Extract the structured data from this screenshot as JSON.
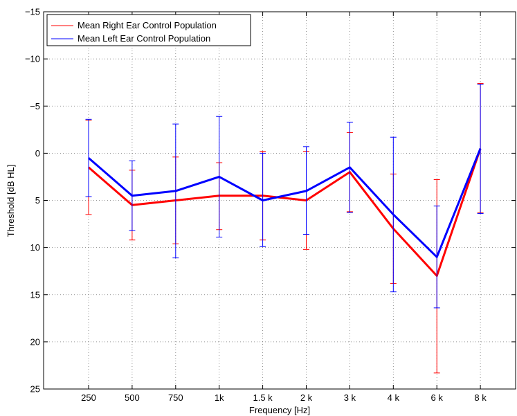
{
  "chart_data": {
    "type": "line",
    "title": "",
    "xlabel": "Frequency [Hz]",
    "ylabel": "Threshold [dB HL]",
    "categories": [
      "250",
      "500",
      "750",
      "1k",
      "1.5 k",
      "2 k",
      "3 k",
      "4 k",
      "6 k",
      "8 k"
    ],
    "y_ticks": [
      "−15",
      "−10",
      "−5",
      "0",
      "5",
      "10",
      "15",
      "20",
      "25"
    ],
    "ylim": [
      -15,
      25
    ],
    "y_reversed": true,
    "grid": true,
    "legend_position": "top-left",
    "series": [
      {
        "name": "Mean Right Ear Control Population",
        "color": "#ff0000",
        "values": [
          1.5,
          5.5,
          5.0,
          4.5,
          4.5,
          5.0,
          2.0,
          8.0,
          13.0,
          -0.5
        ],
        "err_low": [
          6.5,
          9.2,
          9.6,
          8.1,
          9.2,
          10.2,
          6.2,
          13.8,
          23.3,
          6.3
        ],
        "err_high": [
          -3.5,
          1.8,
          0.4,
          1.0,
          -0.2,
          -0.2,
          -2.2,
          2.2,
          2.8,
          -7.4
        ]
      },
      {
        "name": "Mean Left Ear Control Population",
        "color": "#0000ff",
        "values": [
          0.5,
          4.5,
          4.0,
          2.5,
          5.0,
          4.0,
          1.5,
          6.5,
          11.0,
          -0.5
        ],
        "err_low": [
          4.6,
          8.2,
          11.1,
          8.9,
          9.9,
          8.6,
          6.3,
          14.7,
          16.4,
          6.4
        ],
        "err_high": [
          -3.6,
          0.8,
          -3.1,
          -3.9,
          0.0,
          -0.7,
          -3.3,
          -1.7,
          5.6,
          -7.3
        ]
      }
    ]
  }
}
